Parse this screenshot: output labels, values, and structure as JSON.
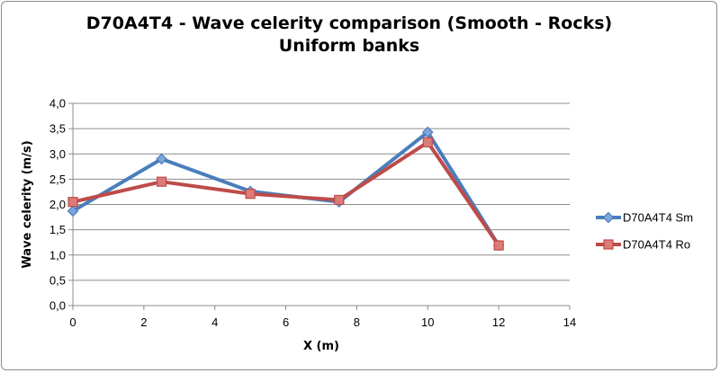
{
  "chart_data": {
    "type": "line",
    "title_line1": "D70A4T4 - Wave celerity comparison (Smooth - Rocks)",
    "title_line2": "Uniform banks",
    "xlabel": "X (m)",
    "ylabel": "Wave celerity (m/s)",
    "xlim": [
      0,
      14
    ],
    "ylim": [
      0,
      4
    ],
    "x_ticks": [
      "0",
      "2",
      "4",
      "6",
      "8",
      "10",
      "12",
      "14"
    ],
    "y_ticks": [
      "0,0",
      "0,5",
      "1,0",
      "1,5",
      "2,0",
      "2,5",
      "3,0",
      "3,5",
      "4,0"
    ],
    "grid": true,
    "legend_position": "right",
    "series": [
      {
        "name": "D70A4T4 Sm",
        "color": "#4a7ebb",
        "marker": "diamond",
        "x": [
          0,
          2.5,
          5,
          7.5,
          10,
          12
        ],
        "y": [
          1.87,
          2.9,
          2.26,
          2.05,
          3.43,
          1.19
        ]
      },
      {
        "name": "D70A4T4 Ro",
        "color": "#be4b48",
        "marker": "square",
        "x": [
          0,
          2.5,
          5,
          7.5,
          10,
          12
        ],
        "y": [
          2.05,
          2.45,
          2.21,
          2.09,
          3.23,
          1.19
        ]
      }
    ]
  }
}
